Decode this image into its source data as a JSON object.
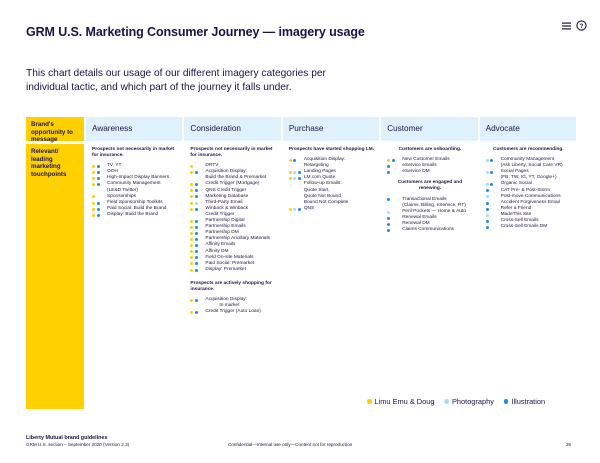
{
  "title": "GRM U.S. Marketing Consumer Journey — imagery usage",
  "subtitle": "This chart details our usage of our different imagery categories per individual tactic, and which part of the journey it falls under.",
  "header_row_label": "Brand's opportunity to message",
  "body_row_label": "Relevant/ leading marketing touchpoints",
  "stages": [
    "Awareness",
    "Consideration",
    "Purchase",
    "Customer",
    "Advocate"
  ],
  "columns": [
    {
      "sections": [
        {
          "head": "Prospects not necessarily in market for insurance.",
          "items": [
            {
              "text": "TV, YT",
              "dots": [
                "y",
                "b"
              ]
            },
            {
              "text": "OOH",
              "dots": [
                "y",
                "b"
              ]
            },
            {
              "text": "High-Impact Display Banners",
              "dots": [
                "y",
                "b"
              ]
            },
            {
              "text": "Community Management",
              "dots": [
                "y",
                "b"
              ]
            },
            {
              "text": "(LE&D Twitter)",
              "dots": []
            },
            {
              "text": "Sponsorships",
              "dots": [
                "y"
              ]
            },
            {
              "text": "Field Sponsorship Toolkits",
              "dots": [
                "y",
                "b"
              ]
            },
            {
              "text": "Paid Social: Build the Brand",
              "dots": [
                "y",
                "b"
              ]
            },
            {
              "text": "Display: Build the Brand",
              "dots": [
                "y",
                "b"
              ]
            }
          ]
        }
      ]
    },
    {
      "sections": [
        {
          "head": "Prospects not necessarily in market for insurance.",
          "items": [
            {
              "text": "DRTV",
              "dots": [
                "y"
              ]
            },
            {
              "text": "Acquisition Display:",
              "dots": [
                "y",
                "b"
              ]
            },
            {
              "text": "Build the Brand & Premarket",
              "dots": []
            },
            {
              "text": "Credit Trigger (Mortgage)",
              "dots": [
                "y",
                "b"
              ]
            },
            {
              "text": "QNS Credit Trigger",
              "dots": [
                "y",
                "b"
              ]
            },
            {
              "text": "Marketing Database",
              "dots": [
                "y",
                "b"
              ]
            },
            {
              "text": "Third-Party Email",
              "dots": [
                "y",
                "l"
              ]
            },
            {
              "text": "Winback & Winback",
              "dots": [
                "y",
                "b"
              ]
            },
            {
              "text": "Credit Trigger",
              "dots": []
            },
            {
              "text": "Partnership Digital",
              "dots": [
                "y",
                "b"
              ]
            },
            {
              "text": "Partnership Emails",
              "dots": [
                "y",
                "b"
              ]
            },
            {
              "text": "Partnership DM",
              "dots": [
                "y",
                "b"
              ]
            },
            {
              "text": "Partnership Ancillary Materials",
              "dots": [
                "y",
                "b"
              ]
            },
            {
              "text": "Affinity Emails",
              "dots": [
                "y",
                "b"
              ]
            },
            {
              "text": "Affinity DM",
              "dots": [
                "y",
                "b"
              ]
            },
            {
              "text": "Field On-site Materials",
              "dots": [
                "y",
                "b"
              ]
            },
            {
              "text": "Paid Social: Premarket",
              "dots": [
                "y",
                "b"
              ]
            },
            {
              "text": "Display: Premarket",
              "dots": [
                "y",
                "b"
              ]
            }
          ]
        },
        {
          "head": "Prospects are actively shopping for insurance.",
          "items": [
            {
              "text": "Acquisition Display:",
              "dots": [
                "y",
                "b"
              ]
            },
            {
              "text": "In market",
              "dots": []
            },
            {
              "text": "Credit Trigger (Auto Loan)",
              "dots": [
                "y",
                "b"
              ]
            }
          ]
        }
      ]
    },
    {
      "sections": [
        {
          "head": "Prospects have started shopping LM.",
          "items": [
            {
              "text": "Acquisition Display:",
              "dots": [
                "y",
                "b"
              ]
            },
            {
              "text": "Retargeting",
              "dots": []
            },
            {
              "text": "Landing Pages",
              "dots": [
                "y",
                "l",
                "b"
              ]
            },
            {
              "text": "LM.com Quote",
              "dots": [
                "y",
                "l",
                "b"
              ]
            },
            {
              "text": "Follow-up Emails:",
              "dots": []
            },
            {
              "text": "Quote Start,",
              "dots": []
            },
            {
              "text": "Quote Not Bound,",
              "dots": []
            },
            {
              "text": "Bound Not Complete",
              "dots": []
            },
            {
              "text": "QNS",
              "dots": [
                "y",
                "l",
                "b"
              ]
            }
          ]
        }
      ]
    },
    {
      "sections": [
        {
          "head": "Customers are onboarding.",
          "items": [
            {
              "text": "New Customer Emails",
              "dots": [
                "y",
                "b"
              ]
            },
            {
              "text": "eService Emails",
              "dots": [
                "b"
              ]
            },
            {
              "text": "eService DM",
              "dots": [
                "b"
              ]
            }
          ]
        },
        {
          "head": "Customers are engaged and renewing.",
          "items": [
            {
              "text": "Transactional Emails",
              "dots": [
                "b"
              ]
            },
            {
              "text": "(Claims, Billing, eService, RT)",
              "dots": []
            },
            {
              "text": "Peril Pockets — Home & Auto",
              "dots": [
                "l"
              ]
            },
            {
              "text": "Renewal Emails",
              "dots": [
                "b"
              ]
            },
            {
              "text": "Renewal DM",
              "dots": [
                "b"
              ]
            },
            {
              "text": "Claims Communications",
              "dots": [
                "b"
              ]
            }
          ]
        }
      ]
    },
    {
      "sections": [
        {
          "head": "Customers are recommending.",
          "items": [
            {
              "text": "Community Management",
              "dots": [
                "l",
                "b"
              ]
            },
            {
              "text": "(Ask Liberty, Social Care VR)",
              "dots": []
            },
            {
              "text": "Social Pages",
              "dots": [
                "l",
                "b"
              ]
            },
            {
              "text": "(FB, TW, IG, YT, Google+)",
              "dots": []
            },
            {
              "text": "Organic Social",
              "dots": [
                "l",
                "b"
              ]
            },
            {
              "text": "CAT Pre- & Post-Storm",
              "dots": [
                "b"
              ]
            },
            {
              "text": "Post-move Communications",
              "dots": [
                "l"
              ]
            },
            {
              "text": "Accident Forgiveness Email",
              "dots": [
                "b"
              ]
            },
            {
              "text": "Refer a Friend",
              "dots": [
                "b"
              ]
            },
            {
              "text": "MadeThis Site",
              "dots": [
                "l"
              ]
            },
            {
              "text": "Cross-Sell Emails",
              "dots": [
                "b"
              ]
            },
            {
              "text": "Cross-Sell Emails DM",
              "dots": [
                "b"
              ]
            }
          ]
        }
      ]
    }
  ],
  "legend": [
    {
      "label": "Limu Emu & Doug",
      "color": "#ffd000"
    },
    {
      "label": "Photography",
      "color": "#a8dcf4"
    },
    {
      "label": "Illustration",
      "color": "#1d8ddf"
    }
  ],
  "footer": {
    "brand": "Liberty Mutual brand guidelines",
    "section": "GRM U.S. section – September 2020 (Version 2.3)",
    "confidential": "Confidential—Internal use only—Content not for reproduction",
    "page": "26"
  },
  "colors": {
    "yellow": "#ffd000",
    "navy": "#1a1446",
    "light_blue_header": "#dff1fc",
    "photography": "#a8dcf4",
    "illustration": "#1d8ddf"
  },
  "icons": [
    "menu-icon",
    "help-icon"
  ]
}
